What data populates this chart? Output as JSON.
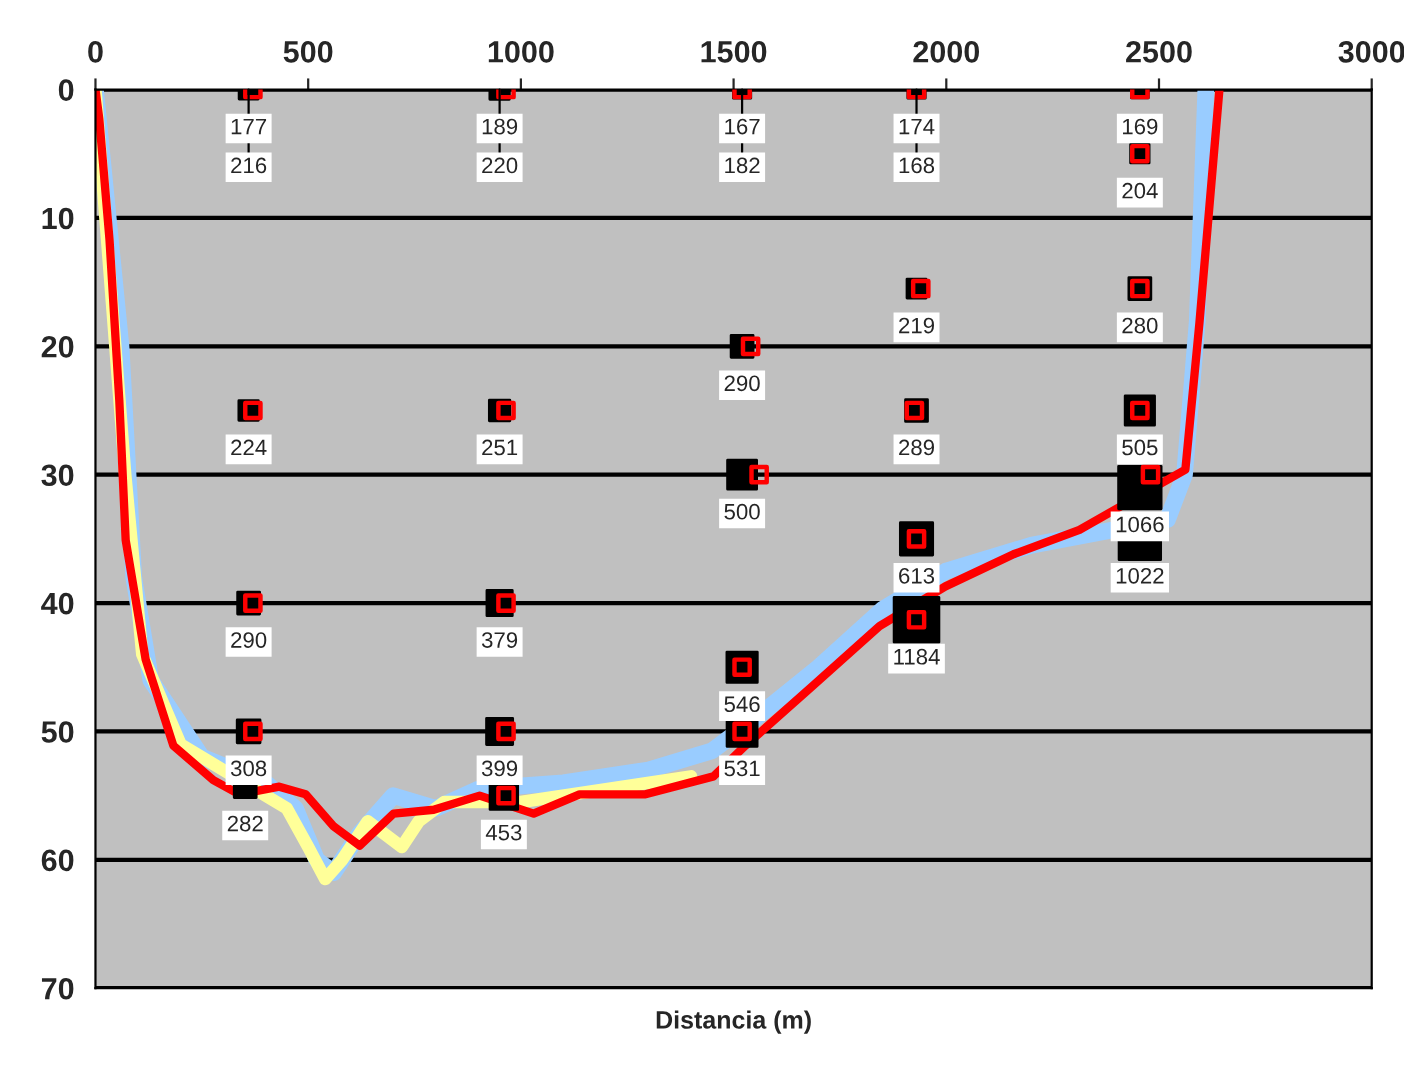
{
  "chart_data": {
    "type": "bubble",
    "xlabel": "Distancia (m)",
    "xlim": [
      0,
      3000
    ],
    "xticks": [
      0,
      500,
      1000,
      1500,
      2000,
      2500,
      3000
    ],
    "ylim": [
      70,
      0
    ],
    "yticks": [
      0,
      10,
      20,
      30,
      40,
      50,
      60,
      70
    ],
    "grid": "y",
    "legend": false,
    "series": [
      {
        "type": "line",
        "marker": "none",
        "color": "#99ccff",
        "x": [
          0,
          60,
          90,
          130,
          250,
          400,
          470,
          520,
          560,
          620,
          700,
          800,
          900,
          1100,
          1300,
          1450,
          1550,
          1700,
          1850,
          2000,
          2200,
          2520,
          2560,
          2590,
          2610
        ],
        "values": [
          0,
          20,
          38,
          46,
          52,
          54,
          56,
          60,
          61,
          58,
          55,
          56,
          54.5,
          54,
          53,
          51.5,
          49,
          45,
          40.5,
          37.5,
          35.5,
          33.5,
          30,
          18,
          0
        ]
      },
      {
        "type": "line",
        "marker": "none",
        "color": "#ffff99",
        "x": [
          0,
          70,
          110,
          200,
          450,
          500,
          540,
          580,
          640,
          720,
          760,
          820,
          1000,
          1200,
          1400
        ],
        "values": [
          0,
          30,
          44,
          51,
          56,
          59,
          61.5,
          60,
          57,
          59,
          57,
          55.5,
          55.5,
          54.5,
          53.5
        ]
      },
      {
        "type": "line",
        "marker": "none",
        "color": "#ff0000",
        "x": [
          0,
          9,
          33,
          56,
          71,
          118,
          183,
          277,
          338,
          432,
          494,
          560,
          621,
          701,
          795,
          903,
          1030,
          1138,
          1293,
          1453,
          1528,
          1688,
          1843,
          1998,
          2158,
          2313,
          2562,
          2595,
          2619,
          2642
        ],
        "values": [
          0,
          2.3,
          11.7,
          24.2,
          35.1,
          44.4,
          51.1,
          53.8,
          54.9,
          54.3,
          54.9,
          57.4,
          58.9,
          56.4,
          56.1,
          55,
          56.4,
          54.9,
          54.9,
          53.5,
          51.1,
          46.4,
          41.8,
          38.7,
          36.2,
          34.3,
          29.6,
          18.2,
          8.9,
          0
        ]
      },
      {
        "marker": "square",
        "color": "#000000",
        "x": [
          360,
          360,
          360,
          360,
          352,
          950,
          950,
          950,
          950,
          960,
          1520,
          1520,
          1520,
          1520,
          1520,
          1930,
          1930,
          1930,
          1930,
          1930,
          2455,
          2455,
          2455,
          2455,
          2455,
          2455
        ],
        "values": [
          0,
          25,
          40,
          50,
          54.3,
          0,
          25,
          40,
          50,
          55,
          0,
          20,
          30,
          45,
          50,
          0,
          15.5,
          25,
          35,
          41.3,
          0,
          5,
          15.5,
          25,
          31,
          35
        ],
        "sizes": [
          0.18,
          0.19,
          0.24,
          0.26,
          0.24,
          0.19,
          0.21,
          0.32,
          0.34,
          0.38,
          0.15,
          0.24,
          0.42,
          0.46,
          0.45,
          0.15,
          0.18,
          0.24,
          0.52,
          1,
          0.14,
          0.17,
          0.24,
          0.43,
          0.9,
          0.86
        ]
      },
      {
        "type": "scatter",
        "marker": "square",
        "color": "#ff0000",
        "x": [
          370,
          370,
          370,
          370,
          965,
          965,
          965,
          965,
          965,
          1520,
          1540,
          1560,
          1520,
          1520,
          1930,
          1940,
          1925,
          1930,
          1930,
          2455,
          2455,
          2455,
          2455,
          2480
        ],
        "values": [
          0,
          25,
          40,
          50,
          0,
          25,
          40,
          50,
          55,
          0,
          20,
          30,
          45,
          50,
          0,
          15.5,
          25,
          35,
          41.3,
          0,
          5,
          15.5,
          25,
          30
        ]
      }
    ],
    "annotations": [
      {
        "text": "177",
        "x": 360,
        "y": 0
      },
      {
        "text": "216",
        "x": 360,
        "y": 0
      },
      {
        "text": "224",
        "x": 360,
        "y": 25
      },
      {
        "text": "290",
        "x": 360,
        "y": 40
      },
      {
        "text": "308",
        "x": 360,
        "y": 50
      },
      {
        "text": "282",
        "x": 352,
        "y": 54.3
      },
      {
        "text": "189",
        "x": 950,
        "y": 0
      },
      {
        "text": "220",
        "x": 950,
        "y": 0
      },
      {
        "text": "251",
        "x": 950,
        "y": 25
      },
      {
        "text": "379",
        "x": 950,
        "y": 40
      },
      {
        "text": "399",
        "x": 950,
        "y": 50
      },
      {
        "text": "453",
        "x": 960,
        "y": 55
      },
      {
        "text": "167",
        "x": 1520,
        "y": 0
      },
      {
        "text": "182",
        "x": 1520,
        "y": 0
      },
      {
        "text": "290",
        "x": 1520,
        "y": 20
      },
      {
        "text": "500",
        "x": 1520,
        "y": 30
      },
      {
        "text": "546",
        "x": 1520,
        "y": 45
      },
      {
        "text": "531",
        "x": 1520,
        "y": 50
      },
      {
        "text": "174",
        "x": 1930,
        "y": 0
      },
      {
        "text": "168",
        "x": 1930,
        "y": 0
      },
      {
        "text": "219",
        "x": 1930,
        "y": 15.5
      },
      {
        "text": "289",
        "x": 1930,
        "y": 25
      },
      {
        "text": "613",
        "x": 1930,
        "y": 35
      },
      {
        "text": "1184",
        "x": 1930,
        "y": 41.3
      },
      {
        "text": "169",
        "x": 2455,
        "y": 0
      },
      {
        "text": "204",
        "x": 2455,
        "y": 5
      },
      {
        "text": "280",
        "x": 2455,
        "y": 15.5
      },
      {
        "text": "505",
        "x": 2455,
        "y": 25
      },
      {
        "text": "1066",
        "x": 2455,
        "y": 31
      },
      {
        "text": "1022",
        "x": 2455,
        "y": 35
      }
    ]
  }
}
